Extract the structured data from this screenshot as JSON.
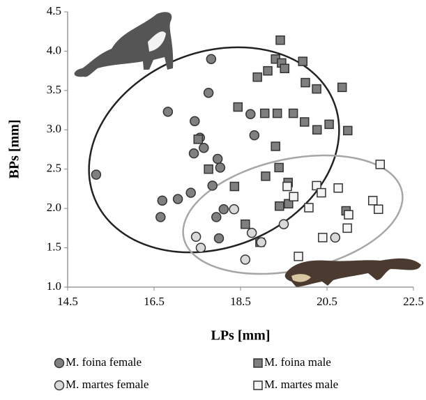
{
  "chart_data": {
    "type": "scatter",
    "x_label": "LPs [mm]",
    "y_label": "BPs [mm]",
    "xlim": [
      14.5,
      22.5
    ],
    "xticks": [
      14.5,
      16.5,
      18.5,
      20.5,
      22.5
    ],
    "ylim": [
      1,
      4.5
    ],
    "yticks": [
      {
        "value": 1,
        "label": "1.0"
      },
      1.5,
      {
        "value": 2,
        "label": "2.0"
      },
      2.5,
      {
        "value": 3,
        "label": "3.0"
      },
      3.5,
      {
        "value": 4,
        "label": "4.0"
      },
      4.5
    ],
    "grid": false,
    "series": [
      {
        "name": "M. foina female",
        "marker": "circle",
        "color": "#808080",
        "x": [
          15.16,
          16.82,
          17.82,
          17.76,
          17.44,
          17.56,
          17.65,
          17.42,
          17.97,
          18.03,
          17.85,
          17.35,
          17.05,
          16.69,
          16.65,
          17.94,
          18.11,
          18.0,
          18.73,
          18.82
        ],
        "values": [
          2.43,
          3.23,
          3.9,
          3.47,
          3.11,
          2.9,
          2.77,
          2.7,
          2.63,
          2.52,
          2.29,
          2.2,
          2.12,
          2.1,
          1.89,
          1.89,
          1.99,
          1.62,
          3.2,
          2.93
        ]
      },
      {
        "name": "M. foina male",
        "marker": "square",
        "color": "#7f7f7f",
        "x": [
          19.42,
          19.31,
          19.45,
          19.13,
          18.89,
          19.52,
          19.94,
          20.0,
          20.26,
          20.85,
          18.44,
          19.06,
          19.35,
          19.72,
          19.98,
          20.27,
          20.55,
          20.98,
          19.31,
          19.39,
          17.76,
          17.52,
          19.08,
          19.6,
          18.36,
          19.4,
          19.61,
          18.61,
          18.95,
          20.94
        ],
        "values": [
          4.14,
          3.9,
          3.85,
          3.75,
          3.67,
          3.78,
          3.87,
          3.6,
          3.52,
          3.54,
          3.29,
          3.21,
          3.21,
          3.21,
          3.1,
          3.0,
          3.07,
          2.99,
          2.79,
          2.52,
          2.5,
          2.88,
          2.41,
          2.33,
          2.28,
          2.03,
          2.06,
          1.8,
          1.57,
          1.97
        ]
      },
      {
        "name": "M. martes female",
        "marker": "circle",
        "color": "#d9d9d9",
        "x": [
          17.47,
          17.58,
          18.35,
          18.76,
          18.98,
          19.5,
          18.61,
          20.69
        ],
        "values": [
          1.64,
          1.5,
          1.99,
          1.69,
          1.57,
          1.8,
          1.35,
          1.63
        ]
      },
      {
        "name": "M. martes male",
        "marker": "square",
        "color": "#f4f4f4",
        "x": [
          21.73,
          20.26,
          20.37,
          20.76,
          19.73,
          19.58,
          20.08,
          21.56,
          21.69,
          21.0,
          20.97,
          20.4,
          19.84
        ],
        "values": [
          2.56,
          2.29,
          2.2,
          2.26,
          2.15,
          2.28,
          2.01,
          2.1,
          1.99,
          1.92,
          1.75,
          1.63,
          1.39
        ]
      }
    ]
  }
}
